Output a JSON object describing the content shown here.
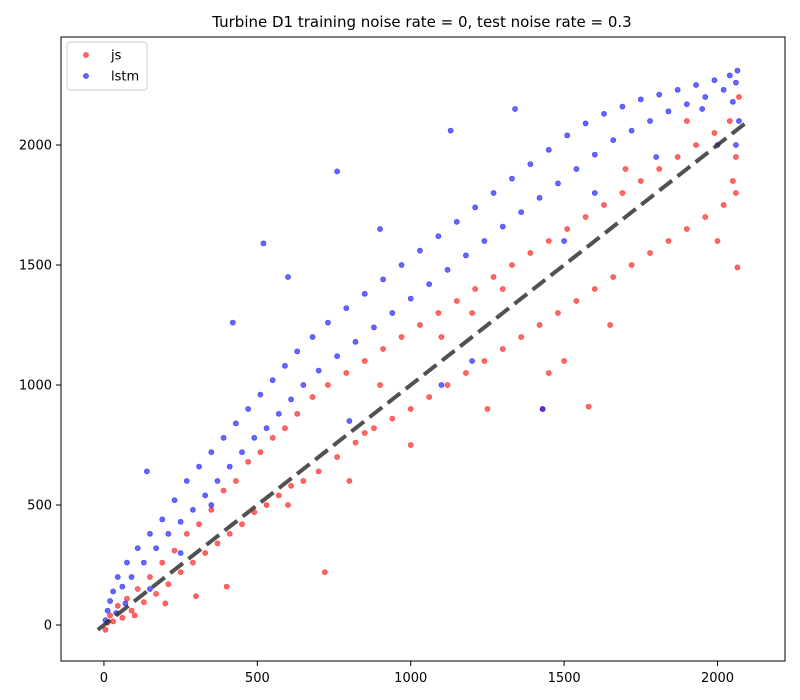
{
  "chart_data": {
    "type": "scatter",
    "title": "Turbine D1 training noise rate = 0, test noise rate = 0.3",
    "xlabel": "",
    "ylabel": "",
    "xlim": [
      -140,
      2220
    ],
    "ylim": [
      -150,
      2450
    ],
    "x_ticks": [
      0,
      500,
      1000,
      1500,
      2000
    ],
    "y_ticks": [
      0,
      500,
      1000,
      1500,
      2000
    ],
    "x_tick_labels": [
      "0",
      "500",
      "1000",
      "1500",
      "2000"
    ],
    "y_tick_labels": [
      "0",
      "500",
      "1000",
      "1500",
      "2000"
    ],
    "grid": false,
    "legend": {
      "position": "top-left",
      "entries": [
        "js",
        "lstm"
      ]
    },
    "reference_line": {
      "style": "dashed",
      "color": "#333333",
      "from": [
        -20,
        -20
      ],
      "to": [
        2090,
        2090
      ]
    },
    "series": [
      {
        "name": "js",
        "color": "#ff0000",
        "opacity": 0.6,
        "points": [
          [
            5,
            -20
          ],
          [
            12,
            10
          ],
          [
            20,
            40
          ],
          [
            30,
            15
          ],
          [
            45,
            80
          ],
          [
            60,
            30
          ],
          [
            75,
            110
          ],
          [
            90,
            60
          ],
          [
            110,
            150
          ],
          [
            130,
            95
          ],
          [
            150,
            200
          ],
          [
            170,
            130
          ],
          [
            190,
            260
          ],
          [
            210,
            170
          ],
          [
            230,
            310
          ],
          [
            250,
            220
          ],
          [
            270,
            380
          ],
          [
            290,
            260
          ],
          [
            310,
            420
          ],
          [
            330,
            300
          ],
          [
            350,
            480
          ],
          [
            370,
            340
          ],
          [
            390,
            560
          ],
          [
            410,
            380
          ],
          [
            430,
            600
          ],
          [
            450,
            420
          ],
          [
            470,
            680
          ],
          [
            490,
            470
          ],
          [
            510,
            720
          ],
          [
            530,
            500
          ],
          [
            550,
            780
          ],
          [
            570,
            540
          ],
          [
            590,
            820
          ],
          [
            610,
            580
          ],
          [
            630,
            880
          ],
          [
            650,
            600
          ],
          [
            680,
            950
          ],
          [
            700,
            640
          ],
          [
            730,
            1000
          ],
          [
            760,
            700
          ],
          [
            790,
            1050
          ],
          [
            820,
            760
          ],
          [
            850,
            1100
          ],
          [
            880,
            820
          ],
          [
            910,
            1150
          ],
          [
            940,
            860
          ],
          [
            970,
            1200
          ],
          [
            1000,
            900
          ],
          [
            1030,
            1250
          ],
          [
            1060,
            950
          ],
          [
            1090,
            1300
          ],
          [
            1120,
            1000
          ],
          [
            1150,
            1350
          ],
          [
            1180,
            1050
          ],
          [
            1210,
            1400
          ],
          [
            1240,
            1100
          ],
          [
            1270,
            1450
          ],
          [
            1300,
            1150
          ],
          [
            1330,
            1500
          ],
          [
            1360,
            1200
          ],
          [
            1390,
            1550
          ],
          [
            1420,
            1250
          ],
          [
            1450,
            1600
          ],
          [
            1480,
            1300
          ],
          [
            1510,
            1650
          ],
          [
            1540,
            1350
          ],
          [
            1570,
            1700
          ],
          [
            1600,
            1400
          ],
          [
            1630,
            1750
          ],
          [
            1660,
            1450
          ],
          [
            1690,
            1800
          ],
          [
            1720,
            1500
          ],
          [
            1750,
            1850
          ],
          [
            1780,
            1550
          ],
          [
            1810,
            1900
          ],
          [
            1840,
            1600
          ],
          [
            1870,
            1950
          ],
          [
            1900,
            1650
          ],
          [
            1930,
            2000
          ],
          [
            1960,
            1700
          ],
          [
            1990,
            2050
          ],
          [
            2020,
            1750
          ],
          [
            2040,
            2100
          ],
          [
            2060,
            1800
          ],
          [
            2065,
            1490
          ],
          [
            2070,
            2200
          ],
          [
            2060,
            1950
          ],
          [
            2050,
            1850
          ],
          [
            1580,
            910
          ],
          [
            1430,
            900
          ],
          [
            720,
            220
          ],
          [
            400,
            160
          ],
          [
            300,
            120
          ],
          [
            200,
            90
          ],
          [
            100,
            40
          ],
          [
            1500,
            1100
          ],
          [
            1200,
            1300
          ],
          [
            900,
            1000
          ],
          [
            600,
            500
          ],
          [
            800,
            600
          ],
          [
            1100,
            1200
          ],
          [
            1300,
            1400
          ],
          [
            1700,
            1900
          ],
          [
            1900,
            2100
          ],
          [
            2000,
            1600
          ],
          [
            1650,
            1250
          ],
          [
            1450,
            1050
          ],
          [
            1250,
            900
          ],
          [
            1000,
            750
          ],
          [
            850,
            800
          ]
        ]
      },
      {
        "name": "lstm",
        "color": "#0000ff",
        "opacity": 0.6,
        "points": [
          [
            5,
            20
          ],
          [
            12,
            60
          ],
          [
            20,
            100
          ],
          [
            30,
            140
          ],
          [
            45,
            200
          ],
          [
            60,
            160
          ],
          [
            75,
            260
          ],
          [
            90,
            200
          ],
          [
            110,
            320
          ],
          [
            130,
            260
          ],
          [
            150,
            380
          ],
          [
            170,
            320
          ],
          [
            190,
            440
          ],
          [
            210,
            380
          ],
          [
            230,
            520
          ],
          [
            250,
            430
          ],
          [
            270,
            600
          ],
          [
            290,
            480
          ],
          [
            310,
            660
          ],
          [
            330,
            540
          ],
          [
            350,
            720
          ],
          [
            370,
            600
          ],
          [
            390,
            780
          ],
          [
            410,
            660
          ],
          [
            430,
            840
          ],
          [
            450,
            720
          ],
          [
            470,
            900
          ],
          [
            490,
            780
          ],
          [
            510,
            960
          ],
          [
            530,
            820
          ],
          [
            550,
            1020
          ],
          [
            570,
            880
          ],
          [
            590,
            1080
          ],
          [
            610,
            940
          ],
          [
            630,
            1140
          ],
          [
            650,
            1000
          ],
          [
            680,
            1200
          ],
          [
            700,
            1060
          ],
          [
            730,
            1260
          ],
          [
            760,
            1120
          ],
          [
            790,
            1320
          ],
          [
            820,
            1180
          ],
          [
            850,
            1380
          ],
          [
            880,
            1240
          ],
          [
            910,
            1440
          ],
          [
            940,
            1300
          ],
          [
            970,
            1500
          ],
          [
            1000,
            1360
          ],
          [
            1030,
            1560
          ],
          [
            1060,
            1420
          ],
          [
            1090,
            1620
          ],
          [
            1120,
            1480
          ],
          [
            1150,
            1680
          ],
          [
            1180,
            1540
          ],
          [
            1210,
            1740
          ],
          [
            1240,
            1600
          ],
          [
            1270,
            1800
          ],
          [
            1300,
            1660
          ],
          [
            1330,
            1860
          ],
          [
            1360,
            1720
          ],
          [
            1390,
            1920
          ],
          [
            1420,
            1780
          ],
          [
            1450,
            1980
          ],
          [
            1480,
            1840
          ],
          [
            1510,
            2040
          ],
          [
            1540,
            1900
          ],
          [
            1570,
            2090
          ],
          [
            1600,
            1960
          ],
          [
            1630,
            2130
          ],
          [
            1660,
            2020
          ],
          [
            1690,
            2160
          ],
          [
            1720,
            2060
          ],
          [
            1750,
            2190
          ],
          [
            1780,
            2100
          ],
          [
            1810,
            2210
          ],
          [
            1840,
            2140
          ],
          [
            1870,
            2230
          ],
          [
            1900,
            2170
          ],
          [
            1930,
            2250
          ],
          [
            1960,
            2200
          ],
          [
            1990,
            2270
          ],
          [
            2020,
            2230
          ],
          [
            2040,
            2290
          ],
          [
            2060,
            2260
          ],
          [
            2065,
            2310
          ],
          [
            2070,
            2100
          ],
          [
            2060,
            2000
          ],
          [
            2050,
            2180
          ],
          [
            520,
            1590
          ],
          [
            1430,
            900
          ],
          [
            140,
            640
          ],
          [
            420,
            1260
          ],
          [
            760,
            1890
          ],
          [
            1130,
            2060
          ],
          [
            1340,
            2150
          ],
          [
            600,
            1450
          ],
          [
            900,
            1650
          ],
          [
            1500,
            1600
          ],
          [
            1200,
            1100
          ],
          [
            800,
            850
          ],
          [
            350,
            500
          ],
          [
            250,
            300
          ],
          [
            150,
            150
          ],
          [
            70,
            90
          ],
          [
            40,
            50
          ],
          [
            1600,
            1800
          ],
          [
            1800,
            1950
          ],
          [
            1950,
            2150
          ],
          [
            2000,
            2000
          ],
          [
            1100,
            1000
          ]
        ]
      }
    ]
  }
}
